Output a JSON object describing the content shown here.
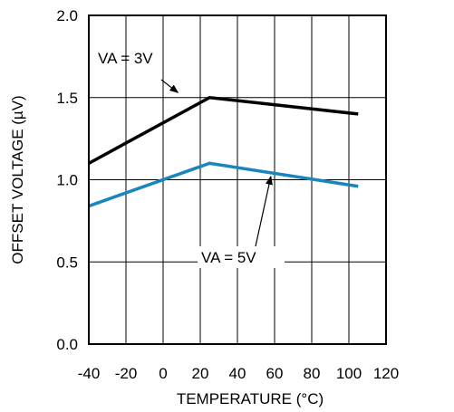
{
  "chart_data": {
    "type": "line",
    "title": "",
    "xlabel": "TEMPERATURE (°C)",
    "ylabel": "OFFSET VOLTAGE (µV)",
    "xlim": [
      -40,
      120
    ],
    "ylim": [
      0.0,
      2.0
    ],
    "x_ticks": [
      -40,
      -20,
      0,
      20,
      40,
      60,
      80,
      100,
      120
    ],
    "x_tick_labels": [
      "-40",
      "-20",
      "0",
      "20",
      "40",
      "60",
      "80",
      "100",
      "120"
    ],
    "y_ticks": [
      0.0,
      0.5,
      1.0,
      1.5,
      2.0
    ],
    "y_tick_labels": [
      "0.0",
      "0.5",
      "1.0",
      "1.5",
      "2.0"
    ],
    "grid": true,
    "series": [
      {
        "name": "VA = 3V",
        "color": "#000000",
        "x": [
          -40,
          25,
          105
        ],
        "y": [
          1.1,
          1.5,
          1.4
        ]
      },
      {
        "name": "VA = 5V",
        "color": "#1a86bd",
        "x": [
          -40,
          25,
          105
        ],
        "y": [
          0.84,
          1.1,
          0.96
        ]
      }
    ],
    "annotations": [
      {
        "text": "VA = 3V",
        "points_to_series": 0,
        "at_x": 8,
        "at_y": 1.53
      },
      {
        "text": "VA = 5V",
        "points_to_series": 1,
        "at_x": 58,
        "at_y": 1.02
      }
    ]
  }
}
